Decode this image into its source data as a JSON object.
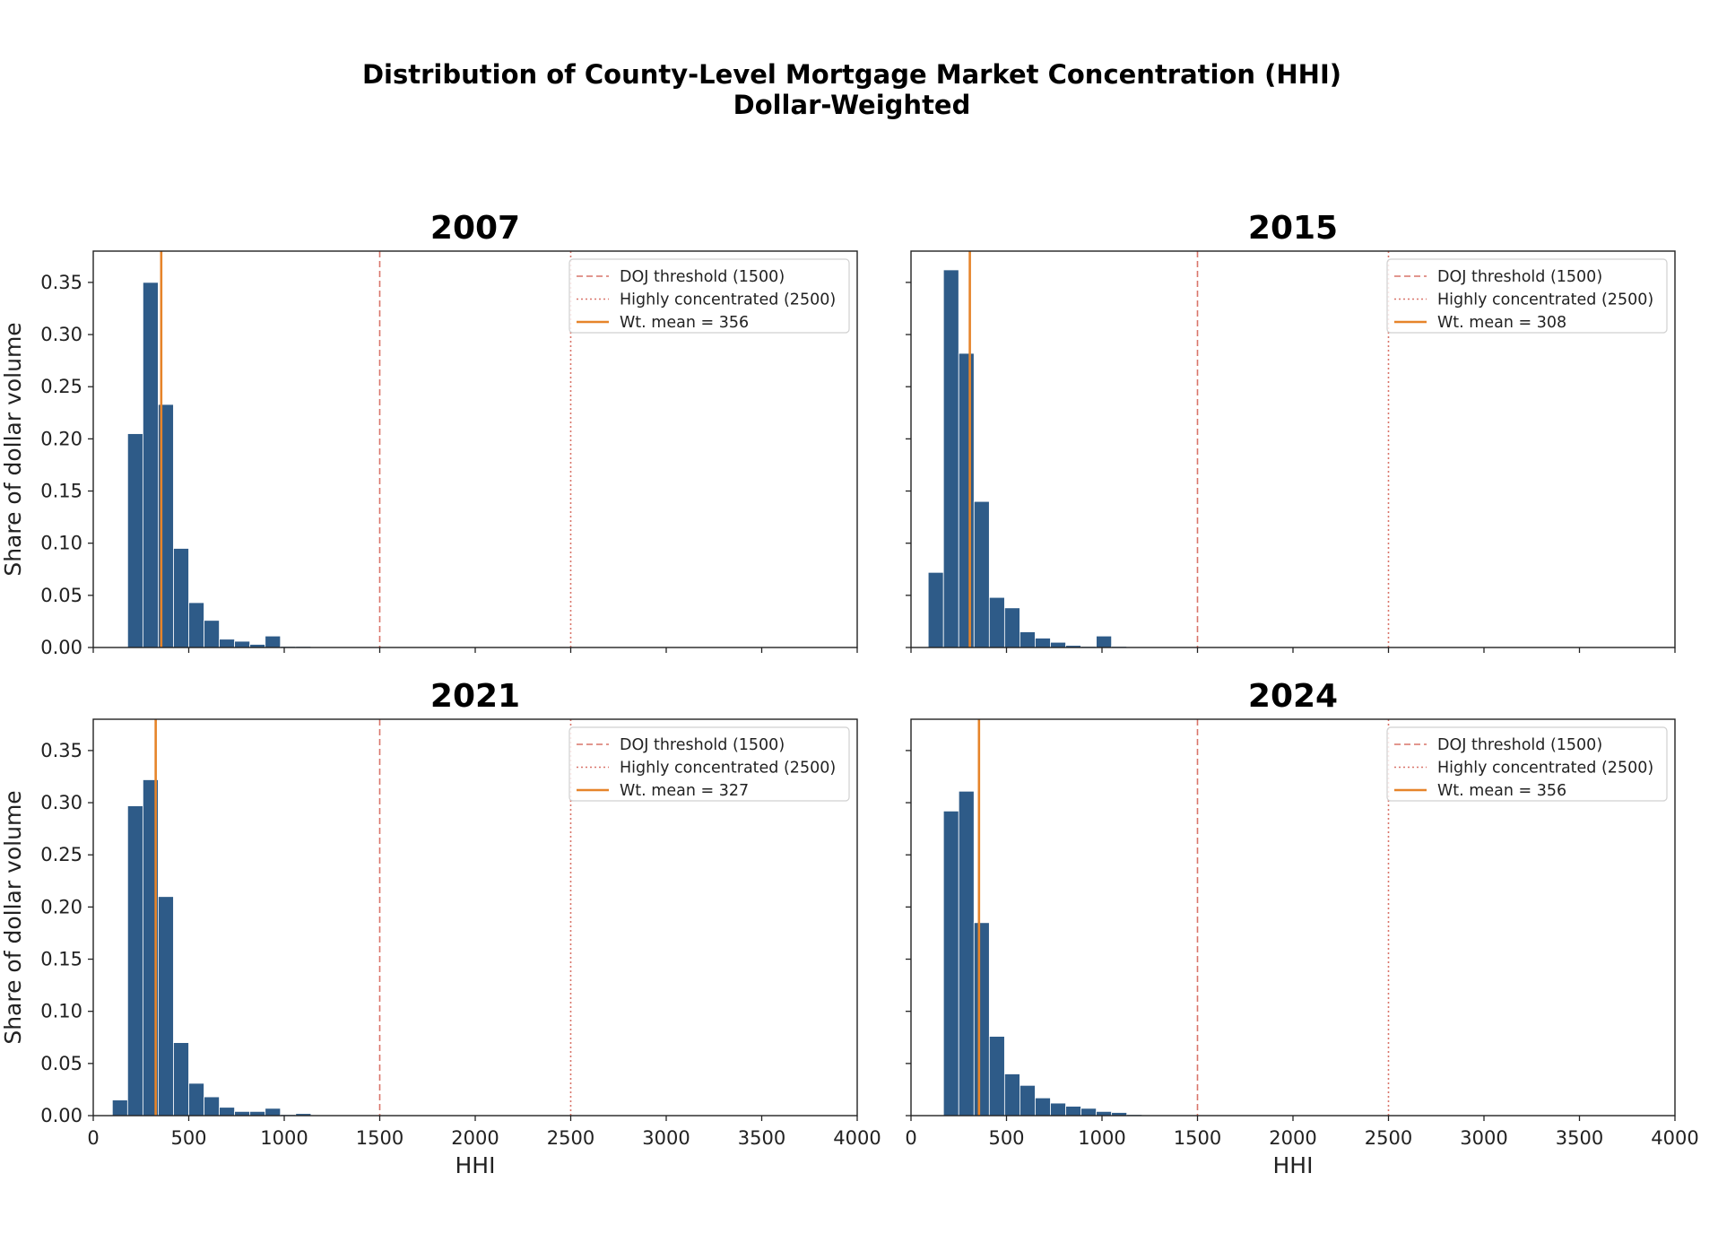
{
  "figure": {
    "title_line1": "Distribution of County-Level Mortgage Market Concentration (HHI)",
    "title_line2": "Dollar-Weighted"
  },
  "colors": {
    "bar": "#2e5b88",
    "bar_edge": "#ffffff",
    "doj_line": "#d9756a",
    "highly_line": "#d9756a",
    "mean_line": "#e6842a",
    "axis": "#222222"
  },
  "chart_data": [
    {
      "type": "bar",
      "title": "2007",
      "xlabel": "",
      "ylabel": "Share of dollar volume",
      "xlim": [
        0,
        4000
      ],
      "ylim": [
        0,
        0.38
      ],
      "xticks": [
        "0",
        "500",
        "1000",
        "1500",
        "2000",
        "2500",
        "3000",
        "3500",
        "4000"
      ],
      "yticks": [
        "0.00",
        "0.05",
        "0.10",
        "0.15",
        "0.20",
        "0.25",
        "0.30",
        "0.35"
      ],
      "show_xtick_labels": false,
      "show_ytick_labels": true,
      "bin_width": 80,
      "bins_start": [
        180,
        260,
        340,
        420,
        500,
        580,
        660,
        740,
        820,
        900,
        980,
        1060,
        1140,
        1220
      ],
      "values": [
        0.205,
        0.35,
        0.233,
        0.095,
        0.043,
        0.026,
        0.008,
        0.006,
        0.003,
        0.011,
        0.001,
        0.001,
        0.0005,
        0.0005
      ],
      "lines": [
        {
          "name": "DOJ threshold (1500)",
          "x": 1500,
          "style": "dashed"
        },
        {
          "name": "Highly concentrated (2500)",
          "x": 2500,
          "style": "dotted"
        },
        {
          "name": "Wt. mean = 356",
          "x": 356,
          "style": "solid"
        }
      ],
      "legend": [
        "DOJ threshold (1500)",
        "Highly concentrated (2500)",
        "Wt. mean = 356"
      ],
      "legend_loc": "upper right"
    },
    {
      "type": "bar",
      "title": "2015",
      "xlabel": "",
      "ylabel": "",
      "xlim": [
        0,
        4000
      ],
      "ylim": [
        0,
        0.38
      ],
      "xticks": [
        "0",
        "500",
        "1000",
        "1500",
        "2000",
        "2500",
        "3000",
        "3500",
        "4000"
      ],
      "yticks": [
        "0.00",
        "0.05",
        "0.10",
        "0.15",
        "0.20",
        "0.25",
        "0.30",
        "0.35"
      ],
      "show_xtick_labels": false,
      "show_ytick_labels": false,
      "bin_width": 80,
      "bins_start": [
        90,
        170,
        250,
        330,
        410,
        490,
        570,
        650,
        730,
        810,
        890,
        970,
        1050,
        1130
      ],
      "values": [
        0.072,
        0.362,
        0.282,
        0.14,
        0.048,
        0.038,
        0.015,
        0.009,
        0.005,
        0.002,
        0.001,
        0.011,
        0.001,
        0.0005
      ],
      "lines": [
        {
          "name": "DOJ threshold (1500)",
          "x": 1500,
          "style": "dashed"
        },
        {
          "name": "Highly concentrated (2500)",
          "x": 2500,
          "style": "dotted"
        },
        {
          "name": "Wt. mean = 308",
          "x": 308,
          "style": "solid"
        }
      ],
      "legend": [
        "DOJ threshold (1500)",
        "Highly concentrated (2500)",
        "Wt. mean = 308"
      ],
      "legend_loc": "upper right"
    },
    {
      "type": "bar",
      "title": "2021",
      "xlabel": "HHI",
      "ylabel": "Share of dollar volume",
      "xlim": [
        0,
        4000
      ],
      "ylim": [
        0,
        0.38
      ],
      "xticks": [
        "0",
        "500",
        "1000",
        "1500",
        "2000",
        "2500",
        "3000",
        "3500",
        "4000"
      ],
      "yticks": [
        "0.00",
        "0.05",
        "0.10",
        "0.15",
        "0.20",
        "0.25",
        "0.30",
        "0.35"
      ],
      "show_xtick_labels": true,
      "show_ytick_labels": true,
      "bin_width": 80,
      "bins_start": [
        100,
        180,
        260,
        340,
        420,
        500,
        580,
        660,
        740,
        820,
        900,
        980,
        1060,
        1140
      ],
      "values": [
        0.015,
        0.297,
        0.322,
        0.21,
        0.07,
        0.031,
        0.018,
        0.008,
        0.004,
        0.004,
        0.007,
        0.001,
        0.002,
        0.0005
      ],
      "lines": [
        {
          "name": "DOJ threshold (1500)",
          "x": 1500,
          "style": "dashed"
        },
        {
          "name": "Highly concentrated (2500)",
          "x": 2500,
          "style": "dotted"
        },
        {
          "name": "Wt. mean = 327",
          "x": 327,
          "style": "solid"
        }
      ],
      "legend": [
        "DOJ threshold (1500)",
        "Highly concentrated (2500)",
        "Wt. mean = 327"
      ],
      "legend_loc": "upper right"
    },
    {
      "type": "bar",
      "title": "2024",
      "xlabel": "HHI",
      "ylabel": "",
      "xlim": [
        0,
        4000
      ],
      "ylim": [
        0,
        0.38
      ],
      "xticks": [
        "0",
        "500",
        "1000",
        "1500",
        "2000",
        "2500",
        "3000",
        "3500",
        "4000"
      ],
      "yticks": [
        "0.00",
        "0.05",
        "0.10",
        "0.15",
        "0.20",
        "0.25",
        "0.30",
        "0.35"
      ],
      "show_xtick_labels": true,
      "show_ytick_labels": false,
      "bin_width": 80,
      "bins_start": [
        170,
        250,
        330,
        410,
        490,
        570,
        650,
        730,
        810,
        890,
        970,
        1050,
        1130
      ],
      "values": [
        0.292,
        0.311,
        0.185,
        0.076,
        0.04,
        0.029,
        0.017,
        0.012,
        0.009,
        0.007,
        0.004,
        0.003,
        0.001
      ],
      "lines": [
        {
          "name": "DOJ threshold (1500)",
          "x": 1500,
          "style": "dashed"
        },
        {
          "name": "Highly concentrated (2500)",
          "x": 2500,
          "style": "dotted"
        },
        {
          "name": "Wt. mean = 356",
          "x": 356,
          "style": "solid"
        }
      ],
      "legend": [
        "DOJ threshold (1500)",
        "Highly concentrated (2500)",
        "Wt. mean = 356"
      ],
      "legend_loc": "upper right"
    }
  ]
}
